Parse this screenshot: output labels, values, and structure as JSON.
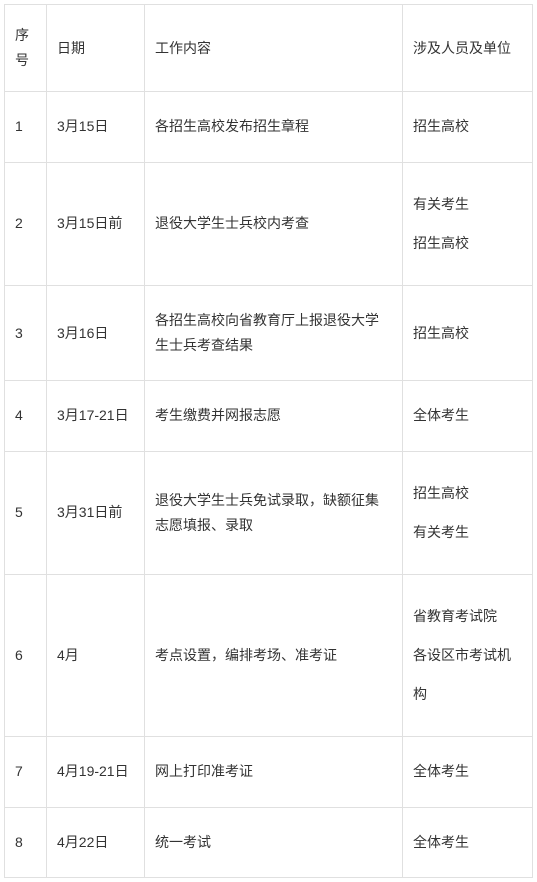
{
  "table": {
    "headers": {
      "num": "序号",
      "date": "日期",
      "content": "工作内容",
      "person": "涉及人员及单位"
    },
    "rows": [
      {
        "num": "1",
        "date": "3月15日",
        "content": "各招生高校发布招生章程",
        "person": "招生高校"
      },
      {
        "num": "2",
        "date": "3月15日前",
        "content": "退役大学生士兵校内考查",
        "person_line1": "有关考生",
        "person_line2": "招生高校"
      },
      {
        "num": "3",
        "date": "3月16日",
        "content": "各招生高校向省教育厅上报退役大学生士兵考查结果",
        "person": "招生高校"
      },
      {
        "num": "4",
        "date": "3月17-21日",
        "content": "考生缴费并网报志愿",
        "person": "全体考生"
      },
      {
        "num": "5",
        "date": "3月31日前",
        "content": "退役大学生士兵免试录取，缺额征集志愿填报、录取",
        "person_line1": "招生高校",
        "person_line2": "有关考生"
      },
      {
        "num": "6",
        "date": "4月",
        "content": "考点设置，编排考场、准考证",
        "person_line1": "省教育考试院",
        "person_line2": "各设区市考试机构"
      },
      {
        "num": "7",
        "date": "4月19-21日",
        "content": "网上打印准考证",
        "person": "全体考生"
      },
      {
        "num": "8",
        "date": "4月22日",
        "content": "统一考试",
        "person": "全体考生"
      }
    ]
  },
  "colors": {
    "border": "#e0e0e0",
    "text": "#333333",
    "background": "#ffffff"
  },
  "fontsize": 14
}
